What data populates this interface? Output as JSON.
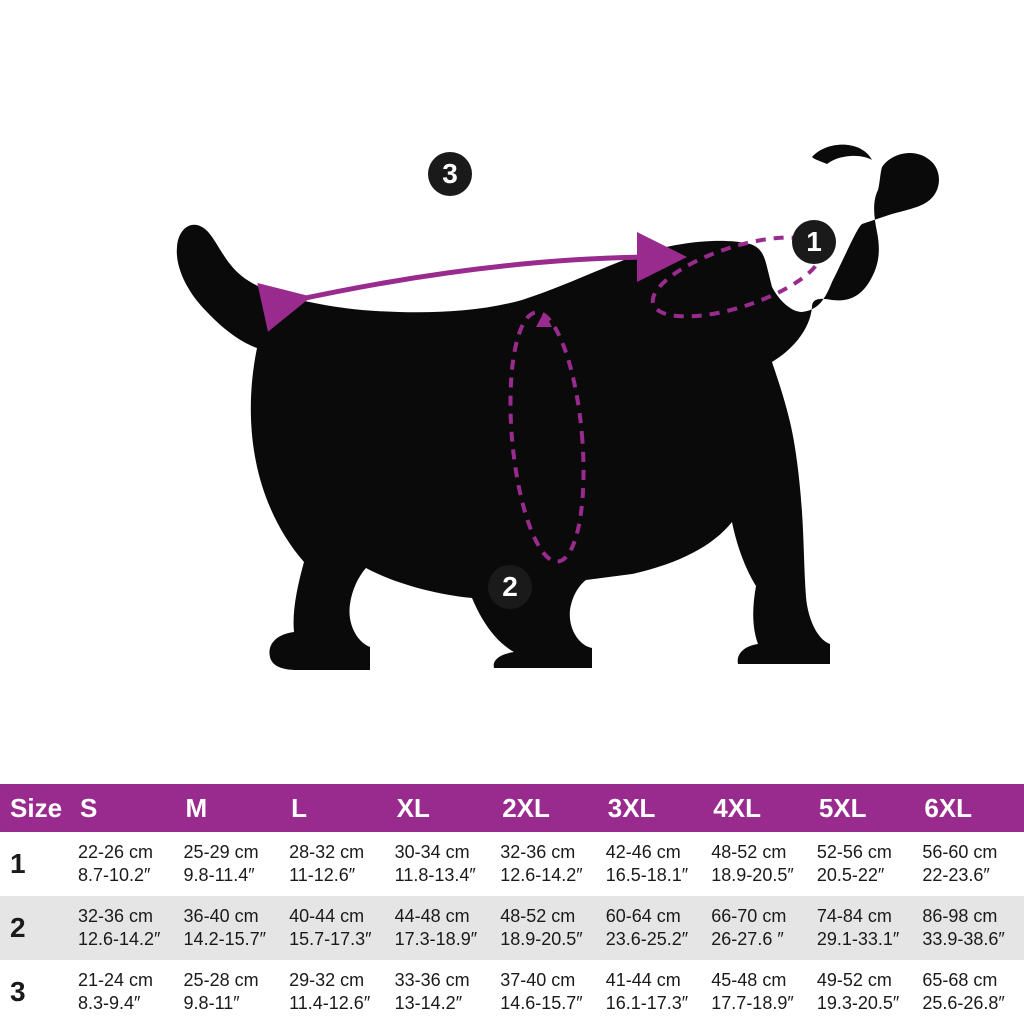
{
  "colors": {
    "header_bg": "#9a2b8e",
    "row_alt_bg": "#e5e5e5",
    "row_bg": "#ffffff",
    "text": "#1a1a1a",
    "header_text": "#ffffff",
    "dog_fill": "#0a0a0a",
    "accent": "#9a2b8e",
    "marker_bg": "#1a1a1a"
  },
  "markers": {
    "m1": "1",
    "m2": "2",
    "m3": "3"
  },
  "table": {
    "header": [
      "Size",
      "S",
      "M",
      "L",
      "XL",
      "2XL",
      "3XL",
      "4XL",
      "5XL",
      "6XL"
    ],
    "rows": [
      {
        "label": "1",
        "cells": [
          {
            "cm": "22-26 cm",
            "in": "8.7-10.2″"
          },
          {
            "cm": "25-29 cm",
            "in": "9.8-11.4″"
          },
          {
            "cm": "28-32 cm",
            "in": "11-12.6″"
          },
          {
            "cm": "30-34 cm",
            "in": "11.8-13.4″"
          },
          {
            "cm": "32-36 cm",
            "in": "12.6-14.2″"
          },
          {
            "cm": "42-46 cm",
            "in": "16.5-18.1″"
          },
          {
            "cm": "48-52 cm",
            "in": "18.9-20.5″"
          },
          {
            "cm": "52-56 cm",
            "in": "20.5-22″"
          },
          {
            "cm": "56-60 cm",
            "in": "22-23.6″"
          }
        ]
      },
      {
        "label": "2",
        "cells": [
          {
            "cm": "32-36 cm",
            "in": "12.6-14.2″"
          },
          {
            "cm": "36-40 cm",
            "in": "14.2-15.7″"
          },
          {
            "cm": "40-44 cm",
            "in": "15.7-17.3″"
          },
          {
            "cm": "44-48 cm",
            "in": "17.3-18.9″"
          },
          {
            "cm": "48-52 cm",
            "in": "18.9-20.5″"
          },
          {
            "cm": "60-64 cm",
            "in": "23.6-25.2″"
          },
          {
            "cm": "66-70 cm",
            "in": "26-27.6  ″"
          },
          {
            "cm": "74-84 cm",
            "in": "29.1-33.1″"
          },
          {
            "cm": "86-98 cm",
            "in": "33.9-38.6″"
          }
        ]
      },
      {
        "label": "3",
        "cells": [
          {
            "cm": "21-24 cm",
            "in": "8.3-9.4″"
          },
          {
            "cm": "25-28 cm",
            "in": "9.8-11″"
          },
          {
            "cm": "29-32 cm",
            "in": "11.4-12.6″"
          },
          {
            "cm": "33-36 cm",
            "in": "13-14.2″"
          },
          {
            "cm": "37-40 cm",
            "in": "14.6-15.7″"
          },
          {
            "cm": "41-44 cm",
            "in": "16.1-17.3″"
          },
          {
            "cm": "45-48 cm",
            "in": "17.7-18.9″"
          },
          {
            "cm": "49-52 cm",
            "in": "19.3-20.5″"
          },
          {
            "cm": "65-68 cm",
            "in": "25.6-26.8″"
          }
        ]
      }
    ]
  }
}
